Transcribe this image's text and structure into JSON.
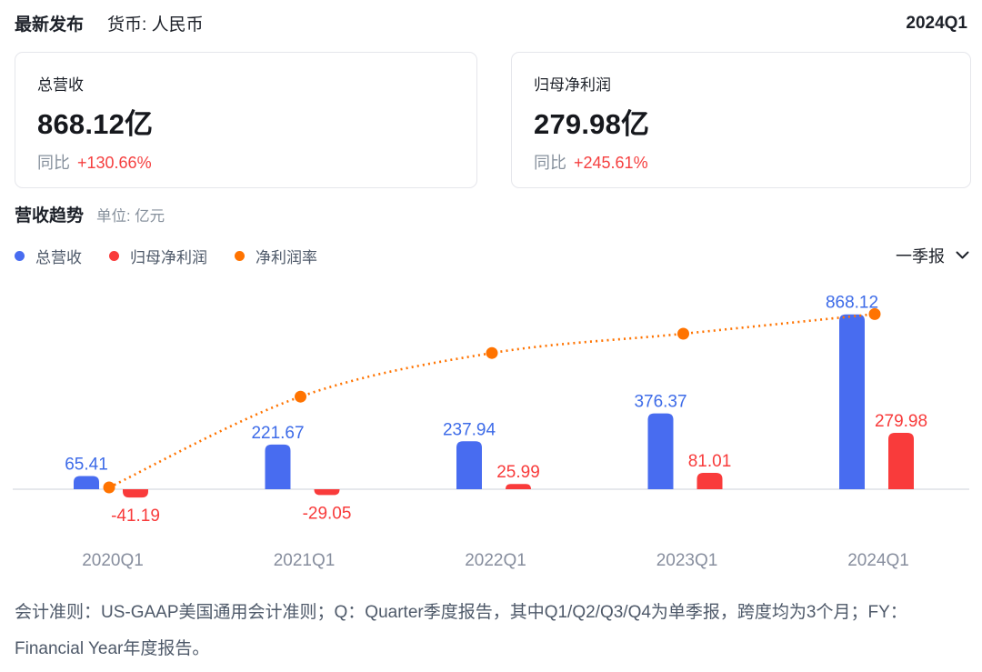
{
  "header": {
    "latest_label": "最新发布",
    "currency_label": "货币: 人民币",
    "period": "2024Q1"
  },
  "cards": [
    {
      "title": "总营收",
      "value": "868.12亿",
      "yoy_label": "同比",
      "yoy_value": "+130.66%"
    },
    {
      "title": "归母净利润",
      "value": "279.98亿",
      "yoy_label": "同比",
      "yoy_value": "+245.61%"
    }
  ],
  "section": {
    "title": "营收趋势",
    "unit_label": "单位: 亿元"
  },
  "legend": [
    {
      "label": "总营收",
      "color": "#486cf0"
    },
    {
      "label": "归母净利润",
      "color": "#f93b3b"
    },
    {
      "label": "净利润率",
      "color": "#ff7300"
    }
  ],
  "period_selector": {
    "label": "一季报"
  },
  "footer": {
    "text": "会计准则：US-GAAP美国通用会计准则；Q：Quarter季度报告，其中Q1/Q2/Q3/Q4为单季报，跨度均为3个月；FY：Financial Year年度报告。"
  },
  "colors": {
    "text_dark": "#1d2129",
    "text_gray": "#86909c",
    "text_slate": "#4e5969",
    "yoy_red": "#f53f3f",
    "bar_blue": "#486cf0",
    "bar_blue_label": "#3d6be8",
    "bar_red": "#f93b3b",
    "bar_red_label": "#f83b3b",
    "line_orange": "#ff7300",
    "axis_gray": "#878e9e",
    "baseline_gray": "#e6e8ec",
    "card_border": "#e5e6eb"
  },
  "chart_data": {
    "type": "bar",
    "categories": [
      "2020Q1",
      "2021Q1",
      "2022Q1",
      "2023Q1",
      "2024Q1"
    ],
    "series": [
      {
        "name": "总营收",
        "type": "bar",
        "color": "#486cf0",
        "label_color": "#3d6be8",
        "values": [
          65.41,
          221.67,
          237.94,
          376.37,
          868.12
        ]
      },
      {
        "name": "归母净利润",
        "type": "bar",
        "color": "#f93b3b",
        "label_color": "#f83b3b",
        "values": [
          -41.19,
          -29.05,
          25.99,
          81.01,
          279.98
        ]
      },
      {
        "name": "净利润率",
        "type": "line",
        "style": "dotted",
        "color": "#ff7300",
        "values_pct_estimated": [
          -63.0,
          -13.1,
          10.9,
          21.5,
          32.3
        ]
      }
    ],
    "unit": "亿元",
    "title": "营收趋势",
    "value_labels": true,
    "grid": false,
    "baseline": 0,
    "legend_position": "top-left"
  }
}
